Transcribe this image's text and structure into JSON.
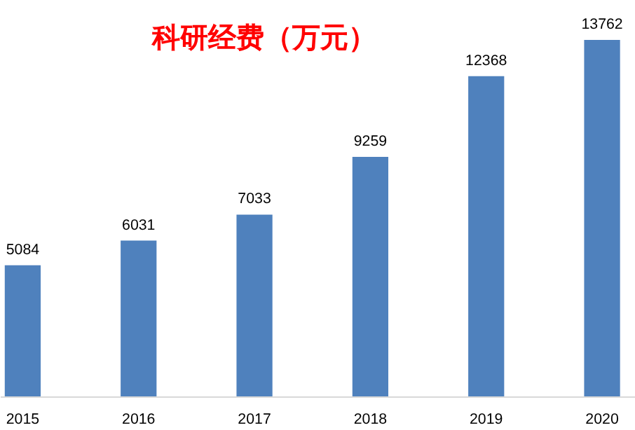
{
  "chart_data": {
    "type": "bar",
    "title": "科研经费（万元）",
    "categories": [
      "2015",
      "2016",
      "2017",
      "2018",
      "2019",
      "2020"
    ],
    "values": [
      5084,
      6031,
      7033,
      9259,
      12368,
      13762
    ],
    "color": "#4f81bd",
    "data_labels": true
  }
}
